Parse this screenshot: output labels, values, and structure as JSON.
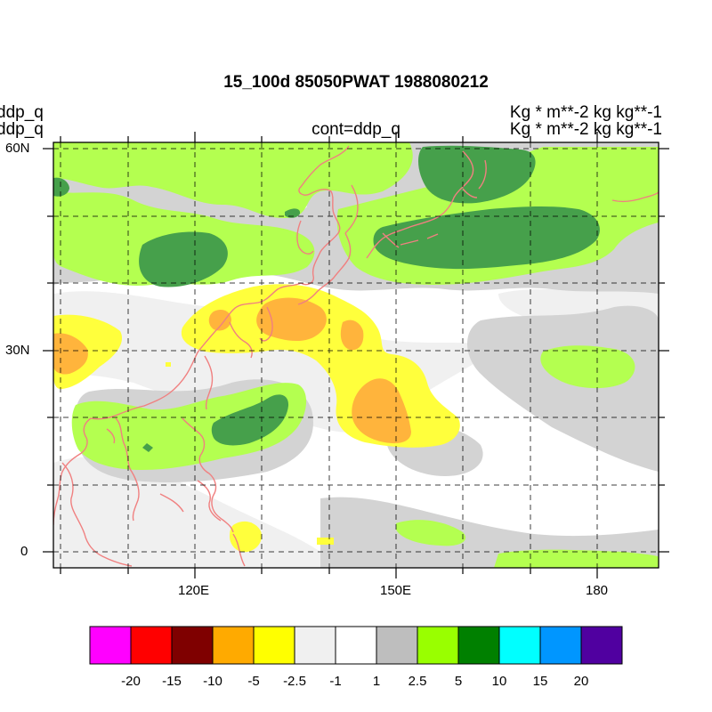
{
  "header": {
    "title": "15_100d 85050PWAT  1988080212",
    "left_line1": "ddp_q",
    "left_line2": "ddp_q",
    "center": "cont=ddp_q",
    "right_line1": "Kg  * m**-2 kg kg**-1",
    "right_line2": "Kg  * m**-2 kg kg**-1"
  },
  "axes": {
    "lon_labels": [
      "120E",
      "150E",
      "180"
    ],
    "lat_labels": [
      "60N",
      "30N",
      "0"
    ]
  },
  "colorbar": {
    "colors": [
      "#ff00ff",
      "#ff0000",
      "#7f0000",
      "#ffaa00",
      "#ffff00",
      "#f0f0f0",
      "#ffffff",
      "#bebebe",
      "#99ff00",
      "#008000",
      "#00ffff",
      "#0096ff",
      "#5000a0"
    ],
    "labels": [
      "-20",
      "-15",
      "-10",
      "-5",
      "-2.5",
      "-1",
      "1",
      "2.5",
      "5",
      "10",
      "15",
      "20"
    ]
  },
  "legend_colors": {
    "coast": "#f08080",
    "light_gray": "#f0f0f0",
    "gray": "#d3d3d3",
    "lime": "#b4ff50",
    "green": "#46a04b",
    "yellow": "#ffff3c",
    "orange": "#ffb43c"
  }
}
